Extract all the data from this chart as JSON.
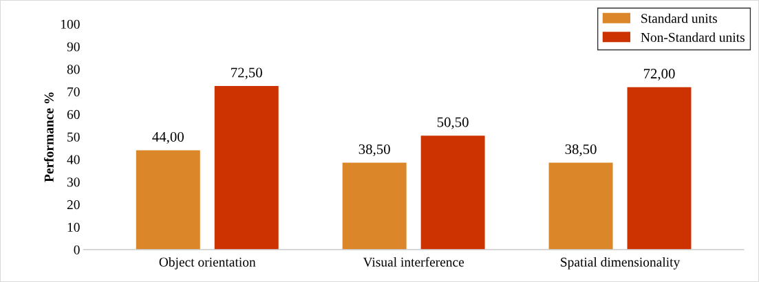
{
  "chart_data": {
    "type": "bar",
    "ylabel": "Performance %",
    "categories": [
      "Object orientation",
      "Visual interference",
      "Spatial dimensionality"
    ],
    "series": [
      {
        "name": "Standard units",
        "color": "#db8629",
        "values": [
          44.0,
          38.5,
          38.5
        ],
        "value_labels": [
          "44,00",
          "38,50",
          "38,50"
        ]
      },
      {
        "name": "Non-Standard units",
        "color": "#cc3300",
        "values": [
          72.5,
          50.5,
          72.0
        ],
        "value_labels": [
          "72,50",
          "50,50",
          "72,00"
        ]
      }
    ],
    "ylim": [
      0,
      100
    ],
    "yticks": [
      0,
      10,
      20,
      30,
      40,
      50,
      60,
      70,
      80,
      90,
      100
    ],
    "grid": false,
    "legend": "top right"
  }
}
